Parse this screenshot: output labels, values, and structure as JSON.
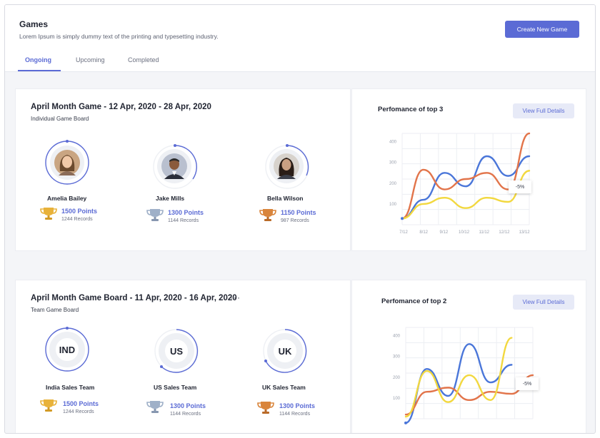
{
  "header": {
    "title": "Games",
    "subtitle": "Lorem Ipsum is simply dummy text of the printing and typesetting industry.",
    "create_button": "Create New Game"
  },
  "tabs": [
    {
      "label": "Ongoing",
      "active": true
    },
    {
      "label": "Upcoming",
      "active": false
    },
    {
      "label": "Completed",
      "active": false
    }
  ],
  "colors": {
    "accent": "#5b6bd5",
    "series_blue": "#4a76d9",
    "series_orange": "#e2744a",
    "series_yellow": "#f2d83f"
  },
  "boards": [
    {
      "title": "April Month Game  - 12 Apr, 2020 -  28 Apr, 2020",
      "subtitle": "Individual Game Board",
      "entries": [
        {
          "name": "Amelia Bailey",
          "points": "1500 Points",
          "records": "1244 Records",
          "trophy": "gold-trophy-icon",
          "avatar": "woman-avatar",
          "progress": 1.0
        },
        {
          "name": "Jake Mills",
          "points": "1300 Points",
          "records": "1144 Records",
          "trophy": "silver-trophy-icon",
          "avatar": "man-avatar",
          "progress": 0.42
        },
        {
          "name": "Bella Wilson",
          "points": "1150 Points",
          "records": "987 Records",
          "trophy": "bronze-trophy-icon",
          "avatar": "woman-avatar",
          "progress": 0.38
        }
      ],
      "chart": {
        "title": "Perfomance of top 3",
        "button": "View Full Details",
        "tooltip": "-5%"
      }
    },
    {
      "title": "April Month Game Board - 11 Apr, 2020 -  16 Apr, 2020",
      "subtitle": "Team Game Board",
      "more": "···",
      "entries": [
        {
          "name": "India Sales Team",
          "code": "IND",
          "points": "1500 Points",
          "records": "1244 Records",
          "trophy": "gold-trophy-icon",
          "progress": 1.0
        },
        {
          "name": "US Sales Team",
          "code": "US",
          "points": "1300 Points",
          "records": "1144 Records",
          "trophy": "silver-trophy-icon",
          "progress": 0.55
        },
        {
          "name": "UK Sales Team",
          "code": "UK",
          "points": "1300 Points",
          "records": "1144 Records",
          "trophy": "bronze-trophy-icon",
          "progress": 0.5
        }
      ],
      "chart": {
        "title": "Perfomance of top 2",
        "button": "View Full Details",
        "tooltip": "-5%"
      }
    }
  ],
  "chart_data": [
    {
      "type": "line",
      "title": "Perfomance of top 3",
      "x": [
        "7/12",
        "8/12",
        "9/12",
        "10/12",
        "11/12",
        "12/12",
        "13/12"
      ],
      "yticks": [
        100,
        200,
        300,
        400
      ],
      "ylim": [
        0,
        440
      ],
      "grid": true,
      "series": [
        {
          "color": "#4a76d9",
          "values": [
            30,
            120,
            250,
            185,
            330,
            235,
            330
          ]
        },
        {
          "color": "#e2744a",
          "values": [
            30,
            265,
            170,
            220,
            250,
            170,
            440
          ]
        },
        {
          "color": "#f2d83f",
          "values": [
            30,
            100,
            130,
            80,
            130,
            110,
            260
          ]
        }
      ],
      "annotation": "-5%"
    },
    {
      "type": "line",
      "title": "Perfomance of top 2",
      "yticks": [
        100,
        200,
        300,
        400
      ],
      "ylim": [
        0,
        440
      ],
      "grid": true,
      "series": [
        {
          "color": "#4a76d9",
          "values": [
            -20,
            240,
            110,
            360,
            175,
            260
          ]
        },
        {
          "color": "#e2744a",
          "values": [
            20,
            130,
            150,
            90,
            130,
            120,
            210
          ]
        },
        {
          "color": "#f2d83f",
          "values": [
            10,
            230,
            80,
            210,
            90,
            390
          ]
        }
      ],
      "annotation": "-5%"
    }
  ]
}
